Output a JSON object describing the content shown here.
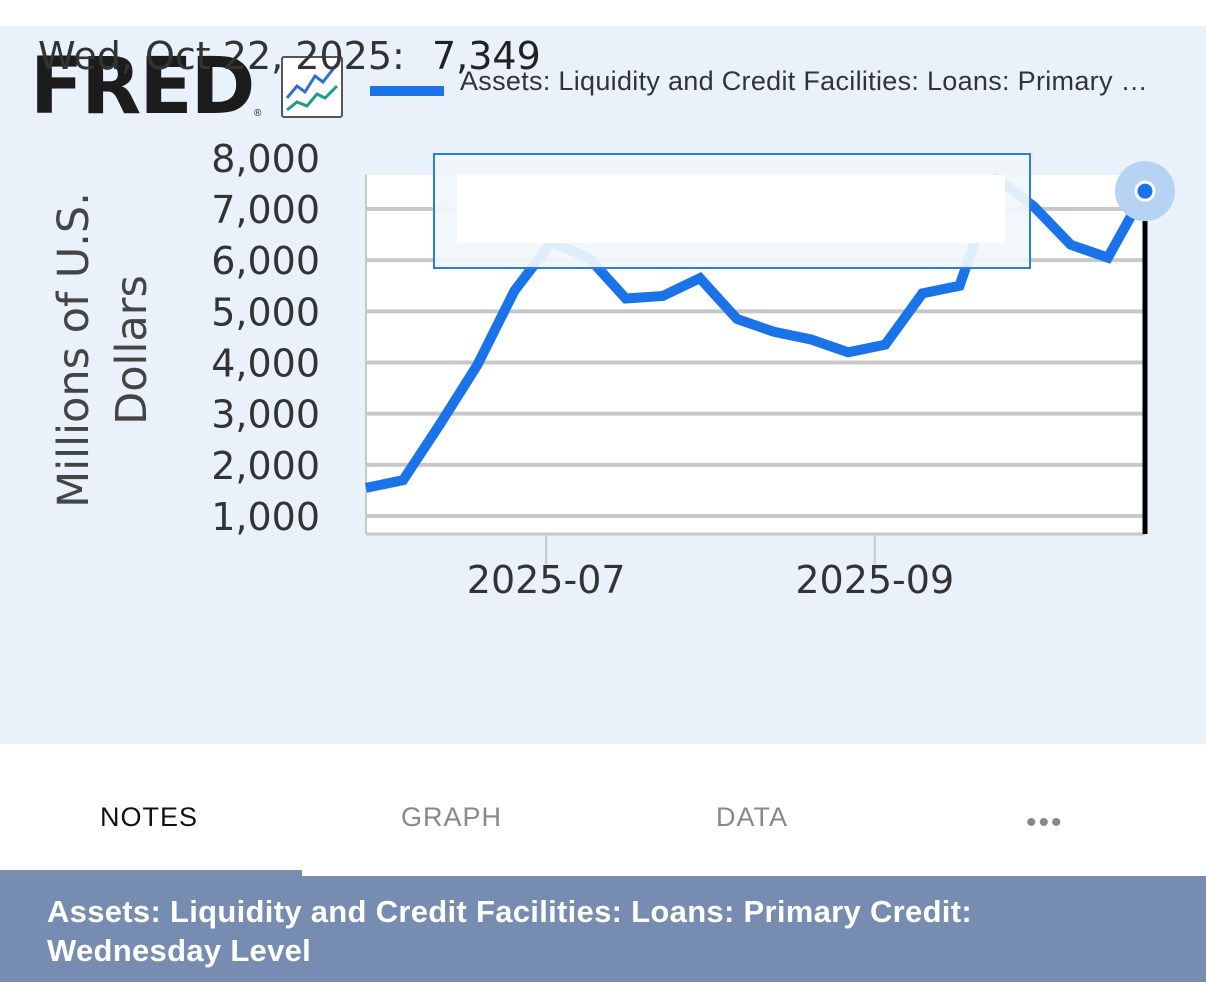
{
  "brand": {
    "name": "FRED",
    "registered": "®",
    "icon": "chart-line-icon"
  },
  "legend": {
    "label": "Assets: Liquidity and Credit Facilities: Loans: Primary Credit: Wednesday Level",
    "color": "#1a73e8"
  },
  "tooltip": {
    "date": "Wed, Oct 22, 2025:",
    "value": "7,349"
  },
  "tabs": [
    {
      "label": "NOTES",
      "active": true
    },
    {
      "label": "GRAPH",
      "active": false
    },
    {
      "label": "DATA",
      "active": false
    }
  ],
  "more_menu": {
    "label": "•••",
    "icon": "more-dots-icon"
  },
  "footer": {
    "title": "Assets: Liquidity and Credit Facilities: Loans: Primary Credit: Wednesday Level"
  },
  "chart_data": {
    "type": "line",
    "ylabel": "Millions of U.S. Dollars",
    "xlabel": "",
    "ylim": [
      1000,
      8000
    ],
    "y_ticks": [
      1000,
      2000,
      3000,
      4000,
      5000,
      6000,
      7000,
      8000
    ],
    "y_tick_labels": [
      "1,000",
      "2,000",
      "3,000",
      "4,000",
      "5,000",
      "6,000",
      "7,000",
      "8,000"
    ],
    "x_tick_labels": [
      "2025-07",
      "2025-09"
    ],
    "x_tick_dates": [
      "2025-07-01",
      "2025-09-01"
    ],
    "xlim": [
      "2025-05-28",
      "2025-10-22"
    ],
    "grid": true,
    "color": "#1a73e8",
    "series": [
      {
        "name": "Assets: Liquidity and Credit Facilities: Loans: Primary Credit: Wednesday Level",
        "x": [
          "2025-05-28",
          "2025-06-04",
          "2025-06-11",
          "2025-06-18",
          "2025-06-25",
          "2025-07-02",
          "2025-07-09",
          "2025-07-16",
          "2025-07-23",
          "2025-07-30",
          "2025-08-06",
          "2025-08-13",
          "2025-08-20",
          "2025-08-27",
          "2025-09-03",
          "2025-09-10",
          "2025-09-17",
          "2025-09-24",
          "2025-10-01",
          "2025-10-08",
          "2025-10-15",
          "2025-10-22"
        ],
        "values": [
          1550,
          1700,
          2800,
          3950,
          5400,
          6350,
          6050,
          5250,
          5300,
          5650,
          4850,
          4600,
          4450,
          4200,
          4350,
          5350,
          5500,
          7600,
          7050,
          6300,
          6050,
          7349
        ]
      }
    ],
    "highlight": {
      "x": "2025-10-22",
      "value": 7349
    }
  }
}
